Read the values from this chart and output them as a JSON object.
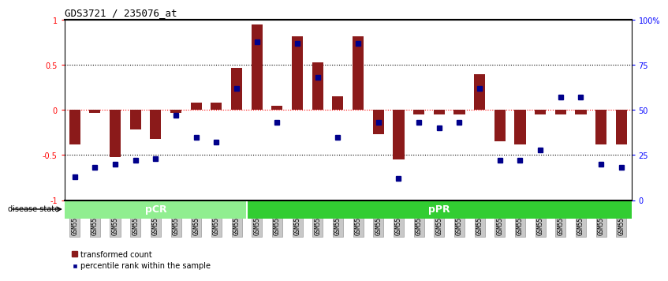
{
  "title": "GDS3721 / 235076_at",
  "samples": [
    "GSM559062",
    "GSM559063",
    "GSM559064",
    "GSM559065",
    "GSM559066",
    "GSM559067",
    "GSM559068",
    "GSM559069",
    "GSM559042",
    "GSM559043",
    "GSM559044",
    "GSM559045",
    "GSM559046",
    "GSM559047",
    "GSM559048",
    "GSM559049",
    "GSM559050",
    "GSM559051",
    "GSM559052",
    "GSM559053",
    "GSM559054",
    "GSM559055",
    "GSM559056",
    "GSM559057",
    "GSM559058",
    "GSM559059",
    "GSM559060",
    "GSM559061"
  ],
  "bar_values": [
    -0.38,
    -0.03,
    -0.52,
    -0.22,
    -0.32,
    -0.03,
    0.08,
    0.08,
    0.47,
    0.95,
    0.05,
    0.82,
    0.53,
    0.15,
    0.82,
    -0.27,
    -0.55,
    -0.05,
    -0.05,
    -0.05,
    0.4,
    -0.35,
    -0.38,
    -0.05,
    -0.05,
    -0.05,
    -0.38,
    -0.38
  ],
  "dot_values": [
    13,
    18,
    20,
    22,
    23,
    47,
    35,
    32,
    62,
    88,
    43,
    87,
    68,
    35,
    87,
    43,
    12,
    43,
    40,
    43,
    62,
    22,
    22,
    28,
    57,
    57,
    20,
    18
  ],
  "pCR_count": 9,
  "pPR_count": 19,
  "bar_color": "#8B1A1A",
  "dot_color": "#00008B",
  "pCR_color": "#90EE90",
  "pPR_color": "#32CD32",
  "bg_color": "#FFFFFF",
  "ylim": [
    -1,
    1
  ],
  "y_left_ticks": [
    -1,
    -0.5,
    0,
    0.5,
    1
  ],
  "y_left_labels": [
    "-1",
    "-0.5",
    "0",
    "0.5",
    "1"
  ],
  "y_right_ticks": [
    0,
    25,
    50,
    75,
    100
  ],
  "y_right_labels": [
    "0",
    "25",
    "50",
    "75",
    "100%"
  ],
  "legend_bar": "transformed count",
  "legend_dot": "percentile rank within the sample",
  "disease_state_label": "disease state"
}
